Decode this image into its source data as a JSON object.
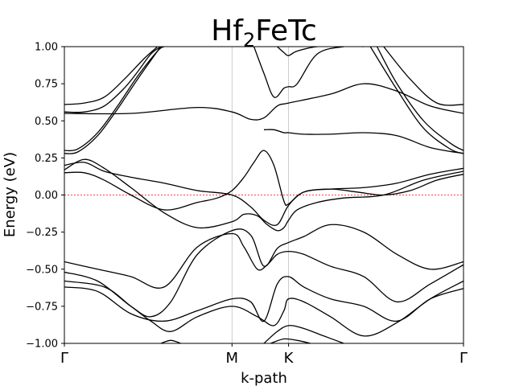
{
  "chart_data": {
    "type": "line",
    "title": {
      "base": "Hf",
      "sub": "2",
      "rest": "FeTc"
    },
    "xlabel": "k-path",
    "ylabel": "Energy (eV)",
    "ylim": [
      -1.0,
      1.0
    ],
    "xlim": [
      0,
      6
    ],
    "yticks": [
      -1.0,
      -0.75,
      -0.5,
      -0.25,
      0.0,
      0.25,
      0.5,
      0.75,
      1.0
    ],
    "ytick_labels": [
      "−1.00",
      "−0.75",
      "−0.50",
      "−0.25",
      "0.00",
      "0.25",
      "0.50",
      "0.75",
      "1.00"
    ],
    "kpoints": [
      {
        "label": "Γ",
        "x": 0
      },
      {
        "label": "M",
        "x": 2.52
      },
      {
        "label": "K",
        "x": 3.37
      },
      {
        "label": "Γ",
        "x": 6
      }
    ],
    "fermi_level": 0.0,
    "colors": {
      "bands": "#000000",
      "fermi": "#ff0000",
      "kline": "#c0c0c0"
    },
    "series": [
      {
        "x": [
          0,
          0.3,
          0.6,
          0.9,
          1.2,
          1.4
        ],
        "y": [
          0.61,
          0.62,
          0.66,
          0.78,
          0.92,
          1.0
        ]
      },
      {
        "x": [
          0,
          0.3,
          0.6,
          0.9,
          1.1,
          1.3,
          1.45
        ],
        "y": [
          0.56,
          0.56,
          0.6,
          0.72,
          0.83,
          0.95,
          1.0
        ]
      },
      {
        "x": [
          0,
          0.2,
          0.5,
          0.8,
          1.1,
          1.4,
          1.5
        ],
        "y": [
          0.3,
          0.31,
          0.42,
          0.6,
          0.8,
          0.97,
          1.0
        ]
      },
      {
        "x": [
          0,
          0.2,
          0.5,
          0.8,
          1.1,
          1.4,
          1.45
        ],
        "y": [
          0.28,
          0.29,
          0.4,
          0.58,
          0.78,
          0.97,
          1.0
        ]
      },
      {
        "x": [
          0,
          0.3,
          0.6,
          1.0,
          1.5,
          2.0,
          2.52,
          2.8,
          3.0,
          3.2,
          3.37,
          3.6,
          4.0,
          4.5,
          5.0,
          5.5,
          6.0
        ],
        "y": [
          0.2,
          0.22,
          0.16,
          0.12,
          0.08,
          0.03,
          0.0,
          -0.08,
          -0.17,
          -0.2,
          -0.07,
          0.02,
          0.04,
          0.05,
          0.08,
          0.14,
          0.18
        ]
      },
      {
        "x": [
          0,
          0.3,
          0.6,
          1.0,
          1.5,
          2.0,
          2.52,
          2.7,
          2.9,
          3.05,
          3.2,
          3.3,
          3.37,
          3.5,
          3.8,
          4.2,
          4.8,
          5.4,
          6.0
        ],
        "y": [
          0.17,
          0.24,
          0.18,
          0.05,
          -0.12,
          -0.22,
          -0.18,
          -0.13,
          -0.14,
          -0.2,
          -0.24,
          -0.22,
          -0.17,
          -0.1,
          -0.05,
          -0.02,
          0.0,
          0.1,
          0.16
        ]
      },
      {
        "x": [
          0,
          0.3,
          0.6,
          1.0,
          1.5,
          2.0,
          2.3,
          2.52,
          2.7,
          2.85,
          3.0,
          3.15,
          3.3,
          3.37,
          3.6,
          4.0,
          4.4,
          4.8,
          5.2,
          5.6,
          6.0
        ],
        "y": [
          0.15,
          0.15,
          0.1,
          0.0,
          -0.1,
          -0.05,
          -0.02,
          0.03,
          0.12,
          0.22,
          0.3,
          0.2,
          -0.04,
          -0.06,
          0.02,
          0.04,
          0.02,
          0.0,
          0.03,
          0.1,
          0.14
        ]
      },
      {
        "x": [
          0,
          1.0,
          2.0,
          2.52,
          2.8,
          3.0,
          3.2,
          3.37,
          4.0,
          4.5,
          5.0,
          5.5,
          6.0
        ],
        "y": [
          0.55,
          0.55,
          0.59,
          0.56,
          0.51,
          0.52,
          0.6,
          0.62,
          0.68,
          0.75,
          0.7,
          0.6,
          0.55
        ]
      },
      {
        "x": [
          2.85,
          3.0,
          3.15,
          3.3,
          3.37,
          3.5,
          3.8,
          4.2,
          4.5
        ],
        "y": [
          1.0,
          0.82,
          0.66,
          0.72,
          0.73,
          0.75,
          0.95,
          1.0,
          1.0
        ]
      },
      {
        "x": [
          3.2,
          3.3,
          3.37,
          3.5,
          3.8,
          4.2
        ],
        "y": [
          1.0,
          0.96,
          0.94,
          0.97,
          1.0,
          1.0
        ]
      },
      {
        "x": [
          3.0,
          3.15,
          3.3,
          3.37,
          3.6,
          4.0,
          4.5,
          5.0,
          5.5,
          6.0
        ],
        "y": [
          0.44,
          0.44,
          0.42,
          0.42,
          0.41,
          0.41,
          0.42,
          0.4,
          0.32,
          0.28
        ]
      },
      {
        "x": [
          4.7,
          5.0,
          5.4,
          5.8,
          6.0
        ],
        "y": [
          1.0,
          0.75,
          0.5,
          0.35,
          0.3
        ]
      },
      {
        "x": [
          4.6,
          5.0,
          5.4,
          5.8,
          6.0
        ],
        "y": [
          1.0,
          0.71,
          0.45,
          0.31,
          0.28
        ]
      },
      {
        "x": [
          4.8,
          5.2,
          5.6,
          6.0
        ],
        "y": [
          1.0,
          0.78,
          0.62,
          0.61
        ]
      },
      {
        "x": [
          0,
          0.5,
          1.0,
          1.5,
          2.0,
          2.52,
          2.7,
          2.9,
          3.05,
          3.2,
          3.37,
          3.6,
          4.0,
          4.5,
          5.0,
          5.5,
          6.0
        ],
        "y": [
          -0.45,
          -0.5,
          -0.55,
          -0.62,
          -0.35,
          -0.26,
          -0.35,
          -0.5,
          -0.47,
          -0.4,
          -0.38,
          -0.4,
          -0.48,
          -0.55,
          -0.72,
          -0.6,
          -0.47
        ]
      },
      {
        "x": [
          0,
          0.5,
          1.0,
          1.3,
          1.6,
          2.0,
          2.52,
          2.8,
          3.0,
          3.2,
          3.37,
          3.6,
          4.0,
          4.5,
          5.0,
          5.5,
          6.0
        ],
        "y": [
          -0.52,
          -0.58,
          -0.75,
          -0.82,
          -0.72,
          -0.4,
          -0.24,
          -0.27,
          -0.48,
          -0.36,
          -0.32,
          -0.28,
          -0.2,
          -0.25,
          -0.4,
          -0.5,
          -0.45
        ]
      },
      {
        "x": [
          0,
          0.5,
          1.0,
          1.5,
          2.0,
          2.52,
          2.8,
          3.0,
          3.2,
          3.37,
          3.6,
          4.0,
          4.5,
          5.0,
          5.5,
          6.0
        ],
        "y": [
          -0.62,
          -0.65,
          -0.8,
          -0.85,
          -0.78,
          -0.7,
          -0.72,
          -0.85,
          -0.6,
          -0.55,
          -0.62,
          -0.7,
          -0.75,
          -0.85,
          -0.7,
          -0.63
        ]
      },
      {
        "x": [
          0,
          0.6,
          1.0,
          1.3,
          1.6,
          2.0,
          2.52,
          2.9,
          3.15,
          3.3,
          3.37,
          3.6,
          4.0,
          4.5,
          5.0,
          5.5,
          6.0
        ],
        "y": [
          -0.58,
          -0.62,
          -0.75,
          -0.85,
          -0.92,
          -0.82,
          -0.75,
          -0.82,
          -0.88,
          -0.78,
          -0.7,
          -0.72,
          -0.82,
          -0.95,
          -0.86,
          -0.7,
          -0.58
        ]
      },
      {
        "x": [
          3.0,
          3.2,
          3.37,
          3.6,
          3.9,
          4.2
        ],
        "y": [
          -1.0,
          -0.92,
          -0.88,
          -0.9,
          -0.95,
          -1.0
        ]
      },
      {
        "x": [
          3.1,
          3.3,
          3.5,
          3.7
        ],
        "y": [
          -1.0,
          -0.97,
          -0.98,
          -1.0
        ]
      },
      {
        "x": [
          1.45,
          1.6,
          1.75
        ],
        "y": [
          -1.0,
          -0.98,
          -1.0
        ]
      }
    ]
  }
}
